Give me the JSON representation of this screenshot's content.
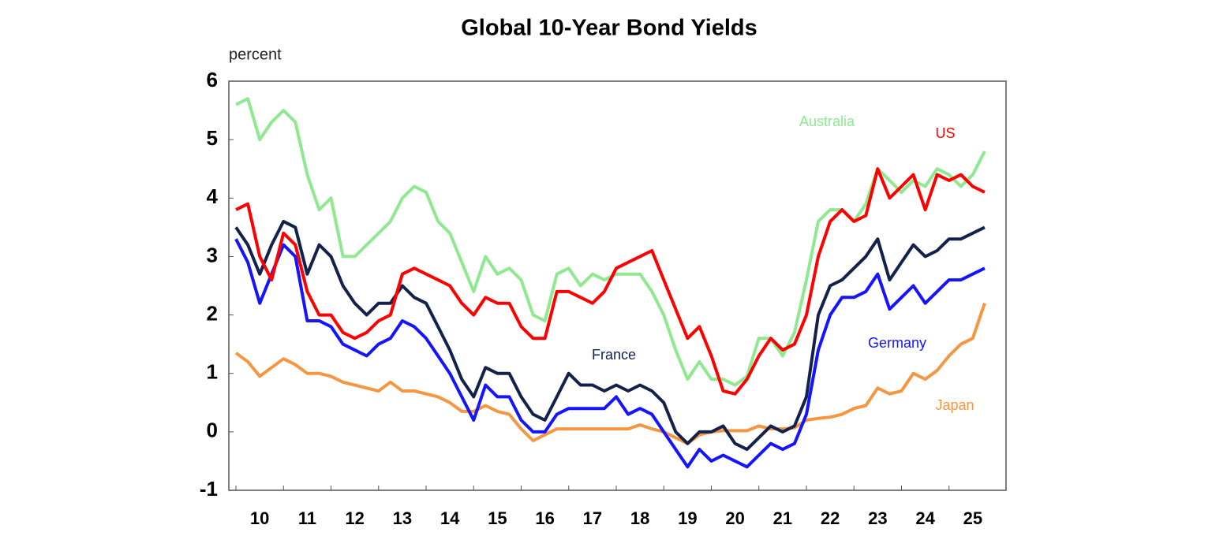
{
  "chart_data": {
    "type": "line",
    "title": "Global 10-Year Bond Yields",
    "y_label": "percent",
    "x": [
      10,
      10.25,
      10.5,
      10.75,
      11,
      11.25,
      11.5,
      11.75,
      12,
      12.25,
      12.5,
      12.75,
      13,
      13.25,
      13.5,
      13.75,
      14,
      14.25,
      14.5,
      14.75,
      15,
      15.25,
      15.5,
      15.75,
      16,
      16.25,
      16.5,
      16.75,
      17,
      17.25,
      17.5,
      17.75,
      18,
      18.25,
      18.5,
      18.75,
      19,
      19.25,
      19.5,
      19.75,
      20,
      20.25,
      20.5,
      20.75,
      21,
      21.25,
      21.5,
      21.75,
      22,
      22.25,
      22.5,
      22.75,
      23,
      23.25,
      23.5,
      23.75,
      24,
      24.25,
      24.5,
      24.75,
      25,
      25.25,
      25.5,
      25.75
    ],
    "series": [
      {
        "name": "Australia",
        "color": "#90e890",
        "values": [
          5.6,
          5.7,
          5.0,
          5.3,
          5.5,
          5.3,
          4.4,
          3.8,
          4.0,
          3.0,
          3.0,
          3.2,
          3.4,
          3.6,
          4.0,
          4.2,
          4.1,
          3.6,
          3.4,
          2.9,
          2.4,
          3.0,
          2.7,
          2.8,
          2.6,
          2.0,
          1.9,
          2.7,
          2.8,
          2.5,
          2.7,
          2.6,
          2.7,
          2.7,
          2.7,
          2.4,
          2.0,
          1.4,
          0.9,
          1.2,
          0.9,
          0.9,
          0.8,
          0.95,
          1.6,
          1.6,
          1.3,
          1.7,
          2.6,
          3.6,
          3.8,
          3.8,
          3.6,
          3.9,
          4.5,
          4.3,
          4.1,
          4.3,
          4.2,
          4.5,
          4.4,
          4.2,
          4.4,
          4.8
        ]
      },
      {
        "name": "US",
        "color": "#ff0000",
        "values": [
          3.8,
          3.9,
          3.0,
          2.6,
          3.4,
          3.2,
          2.4,
          2.0,
          2.0,
          1.7,
          1.6,
          1.7,
          1.9,
          2.0,
          2.7,
          2.8,
          2.7,
          2.6,
          2.5,
          2.2,
          2.0,
          2.3,
          2.2,
          2.2,
          1.8,
          1.6,
          1.6,
          2.4,
          2.4,
          2.3,
          2.2,
          2.4,
          2.8,
          2.9,
          3.0,
          3.1,
          2.6,
          2.1,
          1.6,
          1.8,
          1.3,
          0.7,
          0.65,
          0.9,
          1.3,
          1.6,
          1.4,
          1.5,
          2.0,
          3.0,
          3.6,
          3.8,
          3.6,
          3.7,
          4.5,
          4.0,
          4.2,
          4.4,
          3.8,
          4.4,
          4.3,
          4.4,
          4.2,
          4.1
        ]
      },
      {
        "name": "France",
        "color": "#14214a",
        "values": [
          3.5,
          3.2,
          2.7,
          3.2,
          3.6,
          3.5,
          2.7,
          3.2,
          3.0,
          2.5,
          2.2,
          2.0,
          2.2,
          2.2,
          2.5,
          2.3,
          2.2,
          1.8,
          1.4,
          0.9,
          0.6,
          1.1,
          1.0,
          1.0,
          0.6,
          0.3,
          0.2,
          0.6,
          1.0,
          0.8,
          0.8,
          0.7,
          0.8,
          0.7,
          0.8,
          0.7,
          0.5,
          0.0,
          -0.2,
          0.0,
          0.0,
          0.1,
          -0.2,
          -0.3,
          -0.1,
          0.1,
          0.0,
          0.1,
          0.6,
          2.0,
          2.5,
          2.6,
          2.8,
          3.0,
          3.3,
          2.6,
          2.9,
          3.2,
          3.0,
          3.1,
          3.3,
          3.3,
          3.4,
          3.5
        ]
      },
      {
        "name": "Germany",
        "color": "#1414ff",
        "values": [
          3.3,
          2.9,
          2.2,
          2.7,
          3.2,
          3.0,
          1.9,
          1.9,
          1.8,
          1.5,
          1.4,
          1.3,
          1.5,
          1.6,
          1.9,
          1.8,
          1.6,
          1.3,
          1.0,
          0.6,
          0.2,
          0.8,
          0.6,
          0.6,
          0.2,
          0.0,
          0.0,
          0.3,
          0.4,
          0.4,
          0.4,
          0.4,
          0.6,
          0.3,
          0.4,
          0.3,
          0.0,
          -0.3,
          -0.6,
          -0.3,
          -0.5,
          -0.4,
          -0.5,
          -0.6,
          -0.4,
          -0.2,
          -0.3,
          -0.2,
          0.3,
          1.4,
          2.0,
          2.3,
          2.3,
          2.4,
          2.7,
          2.1,
          2.3,
          2.5,
          2.2,
          2.4,
          2.6,
          2.6,
          2.7,
          2.8
        ]
      },
      {
        "name": "Japan",
        "color": "#f59642",
        "values": [
          1.35,
          1.2,
          0.95,
          1.1,
          1.25,
          1.15,
          1.0,
          1.0,
          0.95,
          0.85,
          0.8,
          0.75,
          0.7,
          0.85,
          0.7,
          0.7,
          0.65,
          0.6,
          0.5,
          0.35,
          0.35,
          0.45,
          0.35,
          0.3,
          0.05,
          -0.15,
          -0.05,
          0.05,
          0.05,
          0.05,
          0.05,
          0.05,
          0.05,
          0.05,
          0.12,
          0.05,
          0.0,
          -0.1,
          -0.2,
          -0.05,
          0.0,
          0.02,
          0.02,
          0.02,
          0.1,
          0.05,
          0.05,
          0.07,
          0.2,
          0.23,
          0.25,
          0.3,
          0.4,
          0.45,
          0.75,
          0.65,
          0.7,
          1.0,
          0.9,
          1.05,
          1.3,
          1.5,
          1.6,
          2.2
        ]
      }
    ],
    "xlim": [
      9.85,
      26.2
    ],
    "xticks": [
      10,
      11,
      12,
      13,
      14,
      15,
      16,
      17,
      18,
      19,
      20,
      21,
      22,
      23,
      24,
      25
    ],
    "ylim": [
      -1,
      6
    ],
    "yticks": [
      -1,
      0,
      1,
      2,
      3,
      4,
      5,
      6
    ],
    "grid": false
  }
}
